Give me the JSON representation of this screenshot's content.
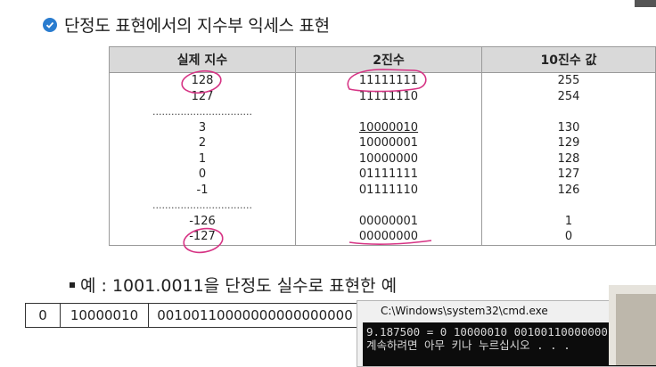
{
  "title": "단정도 표현에서의 지수부 익세스 표현",
  "table": {
    "headers": [
      "실제 지수",
      "2진수",
      "10진수 값"
    ],
    "rows": [
      {
        "exp": "128",
        "bin": "11111111",
        "dec": "255"
      },
      {
        "exp": "127",
        "bin": "11111110",
        "dec": "254"
      },
      {
        "exp": "",
        "bin": "",
        "dec": "",
        "dots": "................................"
      },
      {
        "exp": "3",
        "bin": "10000010",
        "dec": "130",
        "bin_ul": true
      },
      {
        "exp": "2",
        "bin": "10000001",
        "dec": "129"
      },
      {
        "exp": "1",
        "bin": "10000000",
        "dec": "128"
      },
      {
        "exp": "0",
        "bin": "01111111",
        "dec": "127"
      },
      {
        "exp": "-1",
        "bin": "01111110",
        "dec": "126"
      },
      {
        "exp": "",
        "bin": "",
        "dec": "",
        "dots": "................................"
      },
      {
        "exp": "-126",
        "bin": "00000001",
        "dec": "1"
      },
      {
        "exp": "-127",
        "bin": "00000000",
        "dec": "0"
      }
    ]
  },
  "example": {
    "label": "예 : 1001.0011을 단정도 실수로 표현한 예",
    "bits": [
      "0",
      "10000010",
      "00100110000000000000000"
    ]
  },
  "cmd": {
    "title": "C:\\Windows\\system32\\cmd.exe",
    "line1": "9.187500 = 0 10000010 00100110000000",
    "line2": "계속하려면 아무 키나 누르십시오 . . ."
  },
  "colors": {
    "header_bg": "#d9d9d9",
    "annotation": "#d63384",
    "check": "#2a7ccf"
  }
}
